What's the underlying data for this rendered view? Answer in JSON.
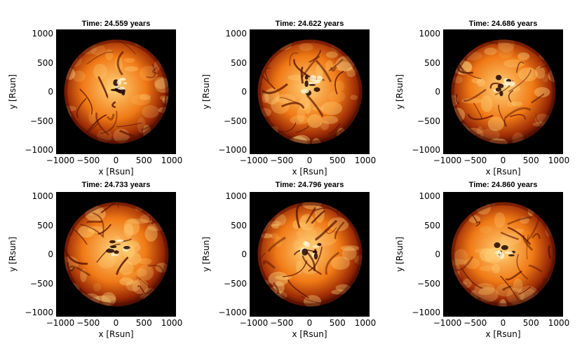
{
  "figure": {
    "panels": [
      {
        "title": "Time: 24.559 years"
      },
      {
        "title": "Time: 24.622 years"
      },
      {
        "title": "Time: 24.686 years"
      },
      {
        "title": "Time: 24.733 years"
      },
      {
        "title": "Time: 24.796 years"
      },
      {
        "title": "Time: 24.860 years"
      }
    ],
    "xlabel": "x [Rsun]",
    "ylabel": "y [Rsun]",
    "xticks": [
      "−1000",
      "−500",
      "0",
      "500",
      "1000"
    ],
    "yticks": [
      "1000",
      "500",
      "0",
      "−500",
      "−1000"
    ],
    "colors": {
      "background": "#000000",
      "surface_bright": "#ffd27a",
      "surface_mid": "#f07a16",
      "surface_dark": "#9a2a05",
      "lane": "#5a1200"
    }
  }
}
